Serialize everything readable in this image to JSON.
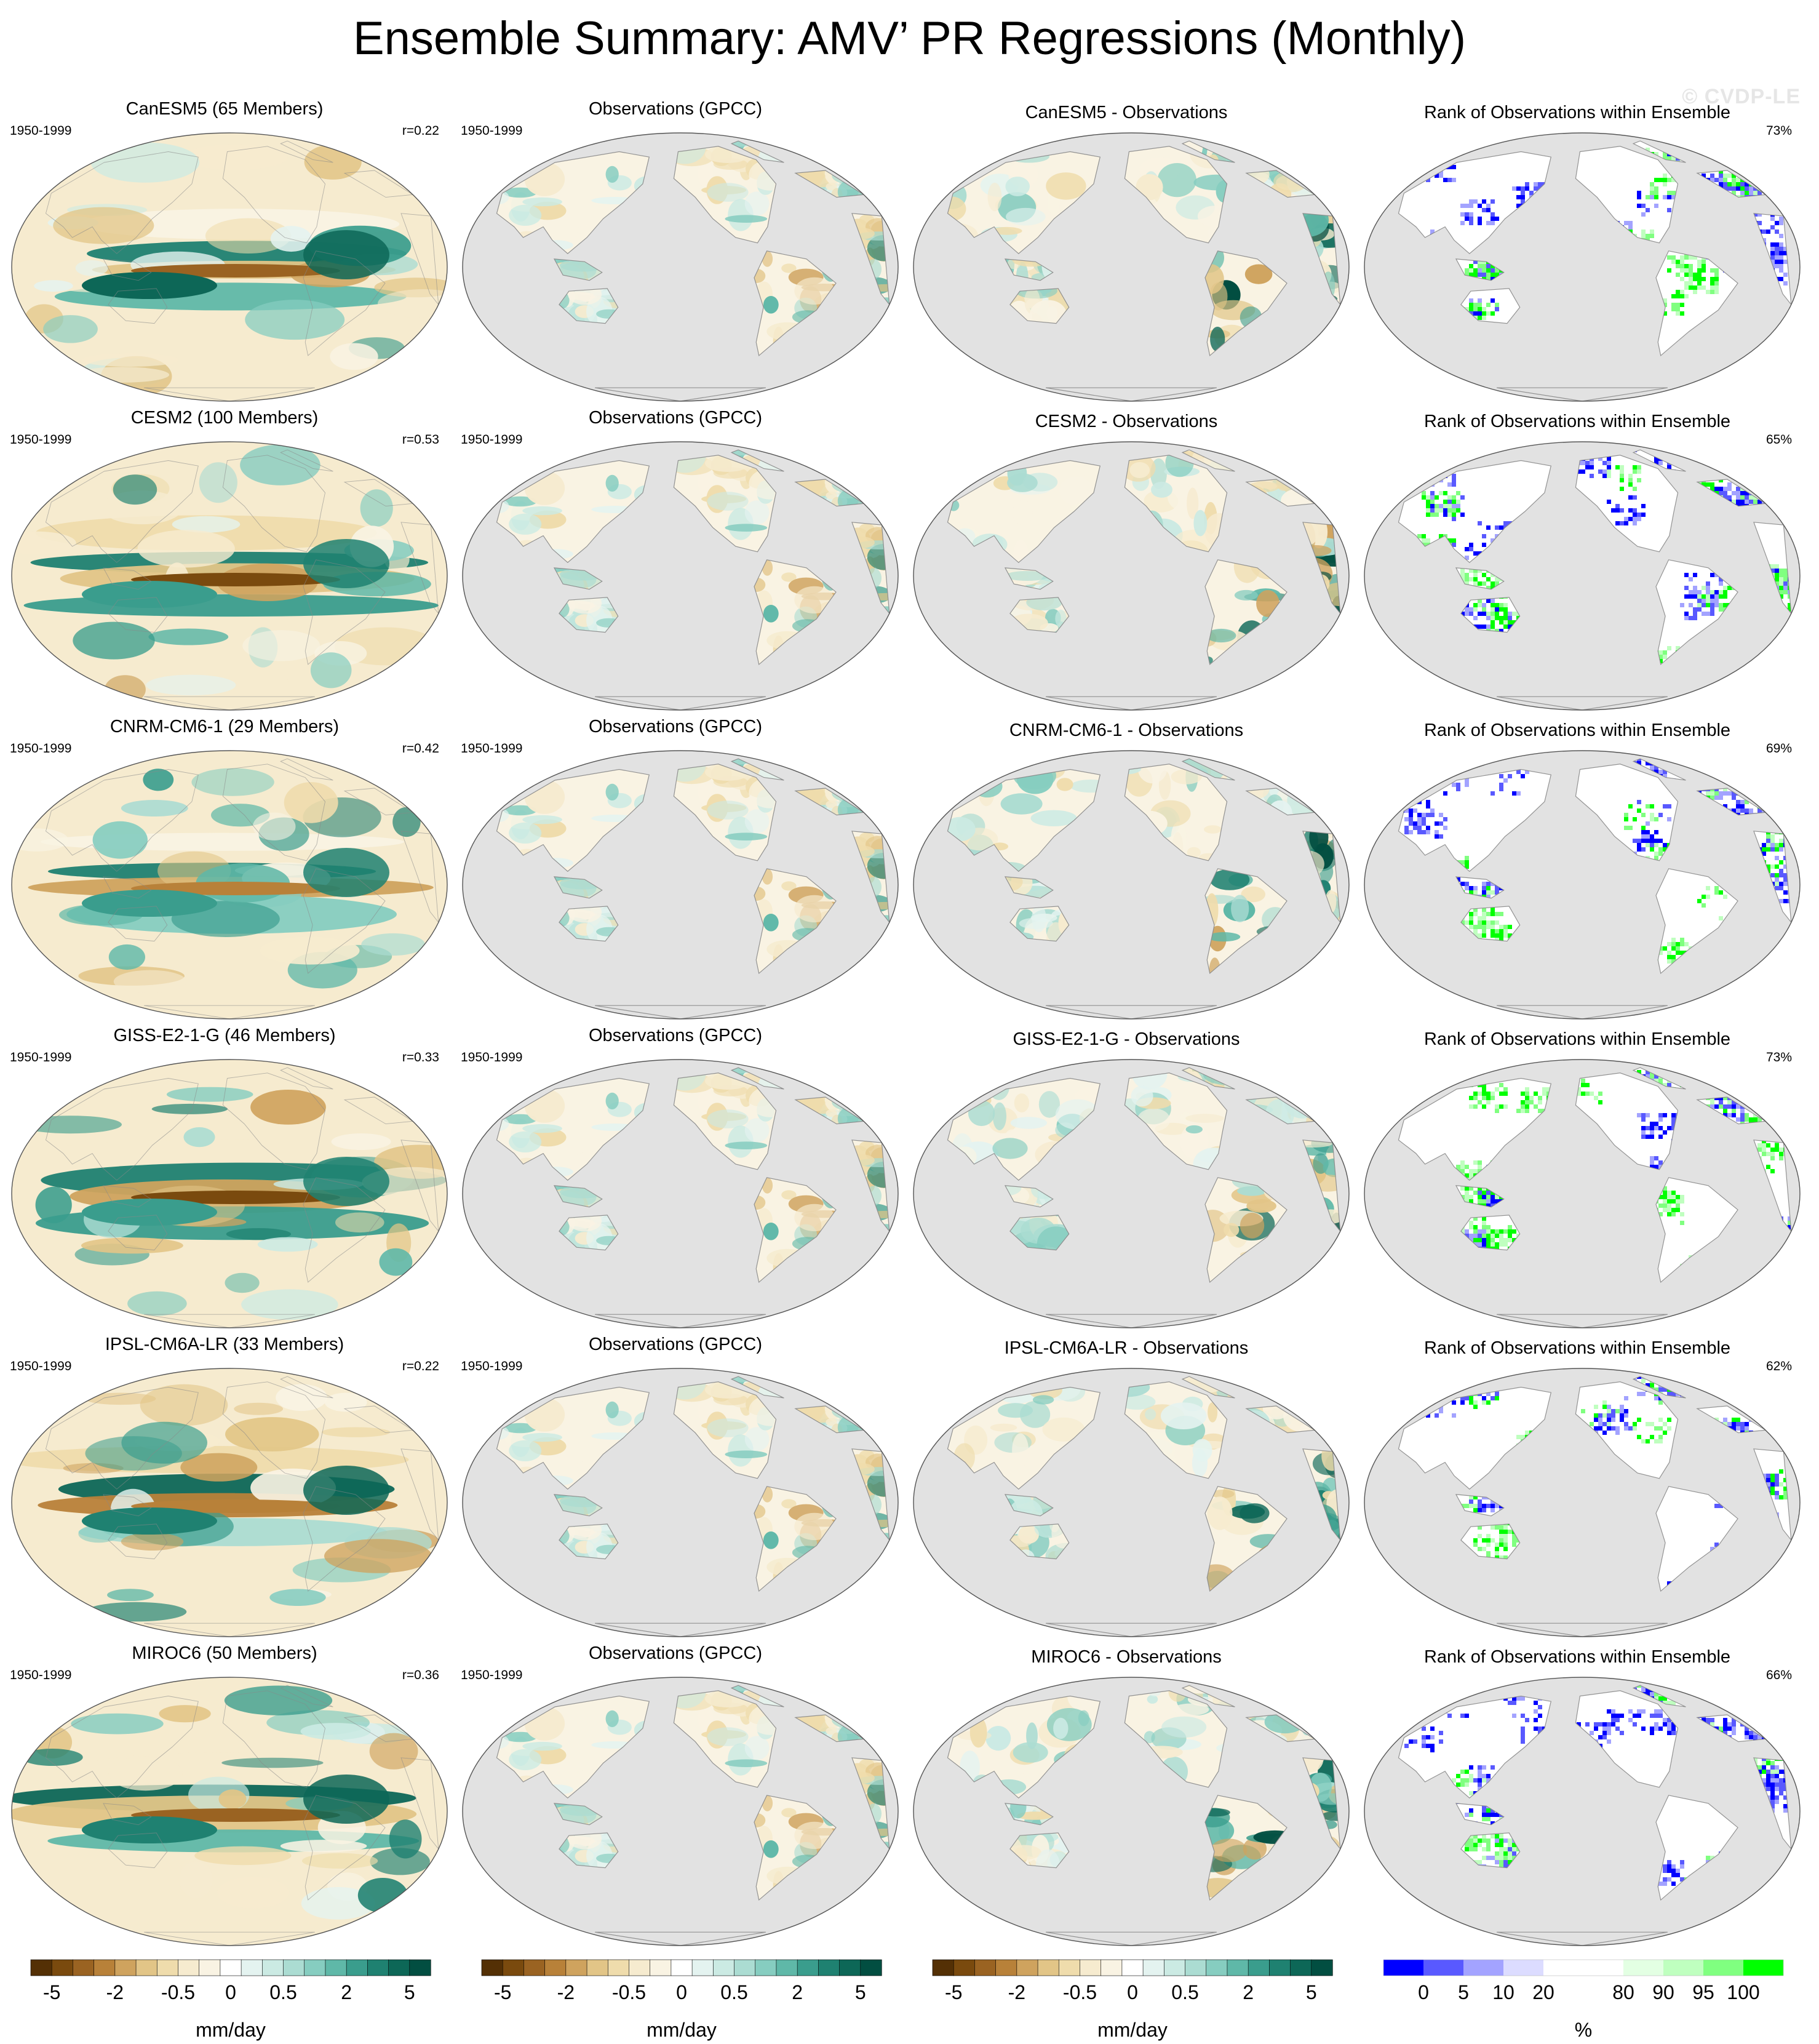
{
  "title": "Ensemble Summary: AMV’ PR Regressions (Monthly)",
  "watermark": "© CVDP-LE",
  "colors": {
    "ocean_gray": "#e2e2e2",
    "coast": "#888888",
    "brown_teal_scale": [
      "#543005",
      "#7a4a0e",
      "#9a6322",
      "#b88139",
      "#cfa35e",
      "#e2c587",
      "#efdcac",
      "#f6ebcf",
      "#f9f3e3",
      "#ffffff",
      "#e4f3f0",
      "#cbeae3",
      "#abdcd2",
      "#86cdc0",
      "#5fb8a8",
      "#3a9d8d",
      "#1f8171",
      "#0d6757",
      "#024e41"
    ],
    "rank_scale": [
      "#0000ff",
      "#5959ff",
      "#a3a3ff",
      "#dcdcff",
      "#ffffff",
      "#ffffff",
      "#e3ffe3",
      "#bfffbf",
      "#80ff80",
      "#00ff00"
    ]
  },
  "rows": [
    {
      "model_title": "CanESM5 (65 Members)",
      "period": "1950-1999",
      "pattern_corr": "r=0.22",
      "obs_title": "Observations (GPCC)",
      "obs_period": "1950-1999",
      "diff_title": "CanESM5 - Observations",
      "rank_title": "Rank of Observations within Ensemble",
      "rank_pct": "73%"
    },
    {
      "model_title": "CESM2 (100 Members)",
      "period": "1950-1999",
      "pattern_corr": "r=0.53",
      "obs_title": "Observations (GPCC)",
      "obs_period": "1950-1999",
      "diff_title": "CESM2 - Observations",
      "rank_title": "Rank of Observations within Ensemble",
      "rank_pct": "65%"
    },
    {
      "model_title": "CNRM-CM6-1 (29 Members)",
      "period": "1950-1999",
      "pattern_corr": "r=0.42",
      "obs_title": "Observations (GPCC)",
      "obs_period": "1950-1999",
      "diff_title": "CNRM-CM6-1 - Observations",
      "rank_title": "Rank of Observations within Ensemble",
      "rank_pct": "69%"
    },
    {
      "model_title": "GISS-E2-1-G (46 Members)",
      "period": "1950-1999",
      "pattern_corr": "r=0.33",
      "obs_title": "Observations (GPCC)",
      "obs_period": "1950-1999",
      "diff_title": "GISS-E2-1-G - Observations",
      "rank_title": "Rank of Observations within Ensemble",
      "rank_pct": "73%"
    },
    {
      "model_title": "IPSL-CM6A-LR (33 Members)",
      "period": "1950-1999",
      "pattern_corr": "r=0.22",
      "obs_title": "Observations (GPCC)",
      "obs_period": "1950-1999",
      "diff_title": "IPSL-CM6A-LR - Observations",
      "rank_title": "Rank of Observations within Ensemble",
      "rank_pct": "62%"
    },
    {
      "model_title": "MIROC6 (50 Members)",
      "period": "1950-1999",
      "pattern_corr": "r=0.36",
      "obs_title": "Observations (GPCC)",
      "obs_period": "1950-1999",
      "diff_title": "MIROC6 - Observations",
      "rank_title": "Rank of Observations within Ensemble",
      "rank_pct": "66%"
    }
  ],
  "colorbars": [
    {
      "unit": "mm/day",
      "tick_labels": [
        "-5",
        "-2",
        "-0.5",
        "0",
        "0.5",
        "2",
        "5"
      ]
    },
    {
      "unit": "mm/day",
      "tick_labels": [
        "-5",
        "-2",
        "-0.5",
        "0",
        "0.5",
        "2",
        "5"
      ]
    },
    {
      "unit": "mm/day",
      "tick_labels": [
        "-5",
        "-2",
        "-0.5",
        "0",
        "0.5",
        "2",
        "5"
      ]
    },
    {
      "unit": "%",
      "tick_labels": [
        "0",
        "5",
        "10",
        "20",
        "80",
        "90",
        "95",
        "100"
      ]
    }
  ],
  "chart_data": {
    "type": "heatmap",
    "projection": "global map, Pacific-centered, land-only for observation panels",
    "title": "Ensemble Summary: AMV’ PR Regressions (Monthly)",
    "columns": [
      "ensemble-mean regression",
      "observations (GPCC)",
      "model minus observations",
      "rank of observations within ensemble"
    ],
    "regression_units": "mm/day",
    "regression_contour_levels": [
      -5,
      -4,
      -3,
      -2,
      -1.5,
      -1,
      -0.5,
      -0.25,
      -0.1,
      0,
      0.1,
      0.25,
      0.5,
      1,
      1.5,
      2,
      3,
      4,
      5
    ],
    "rank_units": "%",
    "rank_levels": [
      0,
      5,
      10,
      20,
      80,
      90,
      95,
      100
    ],
    "rows": [
      {
        "model": "CanESM5",
        "members": 65,
        "period": "1950-1999",
        "pattern_correlation": 0.22,
        "rank_percent": 73
      },
      {
        "model": "CESM2",
        "members": 100,
        "period": "1950-1999",
        "pattern_correlation": 0.53,
        "rank_percent": 65
      },
      {
        "model": "CNRM-CM6-1",
        "members": 29,
        "period": "1950-1999",
        "pattern_correlation": 0.42,
        "rank_percent": 69
      },
      {
        "model": "GISS-E2-1-G",
        "members": 46,
        "period": "1950-1999",
        "pattern_correlation": 0.33,
        "rank_percent": 73
      },
      {
        "model": "IPSL-CM6A-LR",
        "members": 33,
        "period": "1950-1999",
        "pattern_correlation": 0.22,
        "rank_percent": 62
      },
      {
        "model": "MIROC6",
        "members": 50,
        "period": "1950-1999",
        "pattern_correlation": 0.36,
        "rank_percent": 66
      }
    ]
  }
}
